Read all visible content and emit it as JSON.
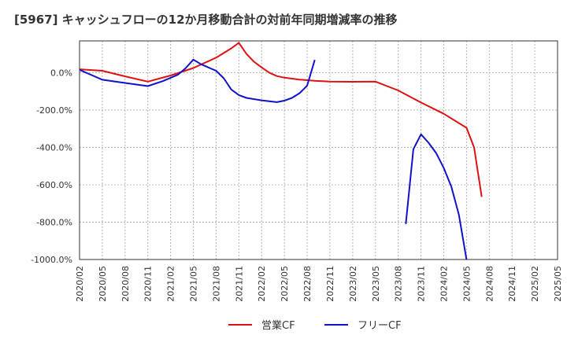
{
  "chart_data": {
    "type": "line",
    "title": "[5967]  キャッシュフローの12か月移動合計の対前年同期増減率の推移",
    "xlabel": "",
    "ylabel": "",
    "ylim": [
      -1000,
      170
    ],
    "y_ticks": [
      0,
      -200,
      -400,
      -600,
      -800,
      -1000
    ],
    "y_tick_labels": [
      "0.0%",
      "-200.0%",
      "-400.0%",
      "-600.0%",
      "-800.0%",
      "-1000.0%"
    ],
    "x_tick_labels": [
      "2020/02",
      "2020/05",
      "2020/08",
      "2020/11",
      "2021/02",
      "2021/05",
      "2021/08",
      "2021/11",
      "2022/02",
      "2022/05",
      "2022/08",
      "2022/11",
      "2023/02",
      "2023/05",
      "2023/08",
      "2023/11",
      "2024/02",
      "2024/05",
      "2024/08",
      "2024/11",
      "2025/02",
      "2025/05"
    ],
    "x_range": [
      0,
      63
    ],
    "grid": true,
    "legend_position": "bottom",
    "series": [
      {
        "name": "営業CF",
        "color": "#dd1111",
        "points": [
          [
            0,
            18
          ],
          [
            3,
            10
          ],
          [
            6,
            -20
          ],
          [
            9,
            -48
          ],
          [
            12,
            -15
          ],
          [
            15,
            25
          ],
          [
            18,
            80
          ],
          [
            20,
            130
          ],
          [
            21,
            160
          ],
          [
            22,
            100
          ],
          [
            23,
            58
          ],
          [
            24,
            28
          ],
          [
            25,
            0
          ],
          [
            26,
            -18
          ],
          [
            27,
            -27
          ],
          [
            29,
            -37
          ],
          [
            31,
            -44
          ],
          [
            33,
            -48
          ],
          [
            36,
            -49
          ],
          [
            39,
            -48
          ],
          [
            42,
            -95
          ],
          [
            45,
            -160
          ],
          [
            48,
            -220
          ],
          [
            51,
            -295
          ],
          [
            52,
            -400
          ],
          [
            53,
            -665
          ]
        ]
      },
      {
        "name": "フリーCF",
        "color": "#1111cc",
        "points": [
          [
            0,
            15
          ],
          [
            3,
            -38
          ],
          [
            6,
            -55
          ],
          [
            9,
            -72
          ],
          [
            11,
            -45
          ],
          [
            13,
            -10
          ],
          [
            14,
            25
          ],
          [
            15,
            70
          ],
          [
            16,
            45
          ],
          [
            18,
            10
          ],
          [
            19,
            -30
          ],
          [
            20,
            -90
          ],
          [
            21,
            -120
          ],
          [
            22,
            -135
          ],
          [
            24,
            -148
          ],
          [
            26,
            -158
          ],
          [
            27,
            -150
          ],
          [
            28,
            -135
          ],
          [
            29,
            -110
          ],
          [
            30,
            -70
          ],
          [
            31,
            68
          ],
          null,
          [
            43,
            -810
          ],
          [
            44,
            -410
          ],
          [
            45,
            -330
          ],
          [
            46,
            -375
          ],
          [
            47,
            -430
          ],
          [
            48,
            -510
          ],
          [
            49,
            -610
          ],
          [
            50,
            -760
          ],
          [
            51,
            -1000
          ]
        ]
      }
    ]
  }
}
